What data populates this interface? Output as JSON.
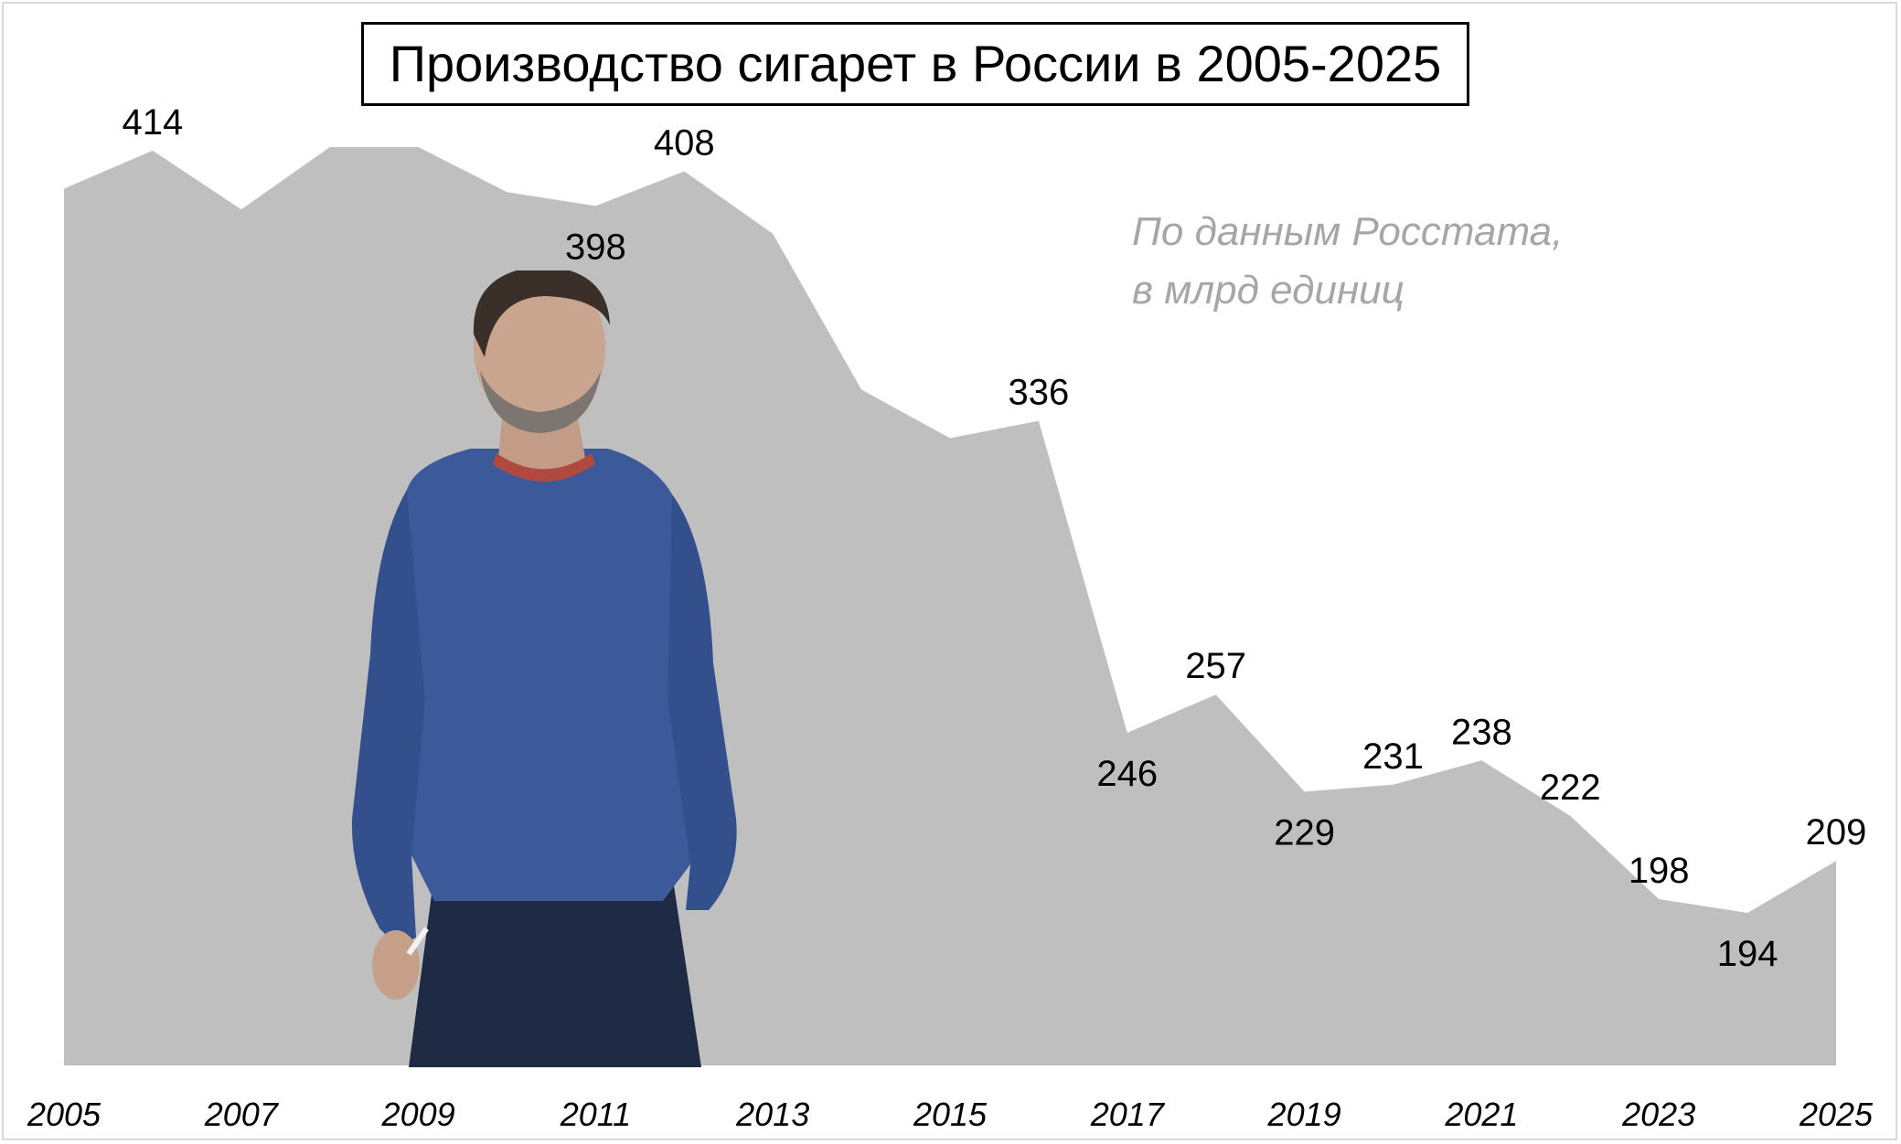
{
  "chart_data": {
    "type": "area",
    "title": "Производство сигарет в России в 2005-2025",
    "note": [
      "По данным Росстата,",
      "в млрд единиц"
    ],
    "x": [
      2005,
      2006,
      2007,
      2008,
      2009,
      2010,
      2011,
      2012,
      2013,
      2014,
      2015,
      2016,
      2017,
      2018,
      2019,
      2020,
      2021,
      2022,
      2023,
      2024,
      2025
    ],
    "values": [
      403,
      414,
      397,
      415,
      415,
      402,
      398,
      408,
      390,
      345,
      331,
      336,
      246,
      257,
      229,
      231,
      238,
      222,
      198,
      194,
      209
    ],
    "data_labels": [
      {
        "x": 2006,
        "text": "414"
      },
      {
        "x": 2011,
        "text": "398"
      },
      {
        "x": 2012,
        "text": "408"
      },
      {
        "x": 2016,
        "text": "336"
      },
      {
        "x": 2017,
        "text": "246"
      },
      {
        "x": 2018,
        "text": "257"
      },
      {
        "x": 2019,
        "text": "229"
      },
      {
        "x": 2020,
        "text": "231"
      },
      {
        "x": 2021,
        "text": "238"
      },
      {
        "x": 2022,
        "text": "222"
      },
      {
        "x": 2023,
        "text": "198"
      },
      {
        "x": 2024,
        "text": "194"
      },
      {
        "x": 2025,
        "text": "209"
      }
    ],
    "x_ticks": [
      "2005",
      "2007",
      "2009",
      "2011",
      "2013",
      "2015",
      "2017",
      "2019",
      "2021",
      "2023",
      "2025"
    ],
    "xlabel": "",
    "ylabel": "",
    "ylim": [
      150,
      420
    ],
    "grid": false,
    "colors": {
      "area": "#bfbfbf",
      "note": "#a6a6a6",
      "text": "#000000"
    }
  }
}
